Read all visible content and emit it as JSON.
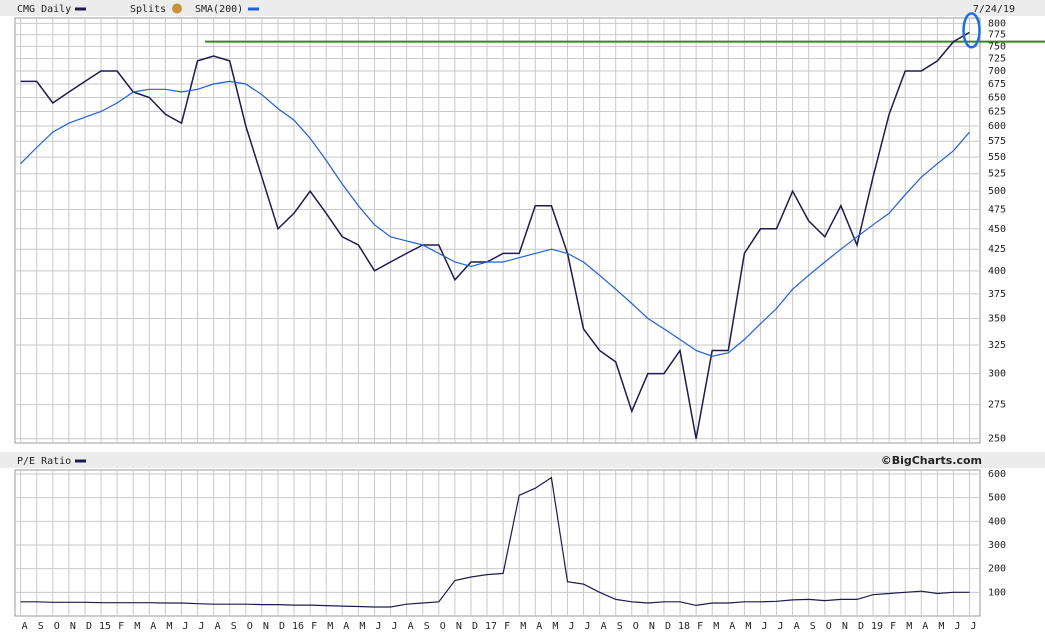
{
  "chart_data": [
    {
      "type": "line",
      "log_scale": true,
      "grid": true,
      "date_label": "7/24/19",
      "splits_label": "Splits",
      "ylim": [
        247,
        812
      ],
      "yticks": [
        250,
        275,
        300,
        325,
        350,
        375,
        400,
        425,
        450,
        475,
        500,
        525,
        550,
        575,
        600,
        625,
        650,
        675,
        700,
        725,
        750,
        775,
        800
      ],
      "reference_line": {
        "value": 760,
        "color": "#2e8b1e"
      },
      "series": [
        {
          "name": "CMG Daily",
          "color": "#1c1c4e",
          "values": [
            680,
            680,
            640,
            660,
            680,
            700,
            700,
            660,
            650,
            620,
            605,
            720,
            730,
            720,
            600,
            520,
            450,
            470,
            500,
            470,
            440,
            430,
            400,
            410,
            420,
            430,
            430,
            390,
            410,
            410,
            420,
            420,
            480,
            480,
            420,
            340,
            320,
            310,
            270,
            300,
            300,
            320,
            250,
            320,
            320,
            420,
            450,
            450,
            500,
            460,
            440,
            480,
            430,
            520,
            620,
            700,
            700,
            720,
            760,
            780
          ]
        },
        {
          "name": "SMA(200)",
          "color": "#1f5fd6",
          "values": [
            540,
            565,
            590,
            605,
            615,
            625,
            640,
            660,
            665,
            665,
            660,
            665,
            675,
            680,
            675,
            655,
            630,
            610,
            580,
            545,
            510,
            480,
            455,
            440,
            435,
            430,
            420,
            410,
            405,
            410,
            410,
            415,
            420,
            425,
            420,
            410,
            395,
            380,
            365,
            350,
            340,
            330,
            320,
            315,
            318,
            330,
            345,
            360,
            380,
            395,
            410,
            425,
            440,
            455,
            470,
            495,
            520,
            540,
            560,
            590
          ]
        }
      ]
    },
    {
      "type": "line",
      "grid": true,
      "credit": "©BigCharts.com",
      "ylim": [
        0,
        617
      ],
      "yticks": [
        100,
        200,
        300,
        400,
        500,
        600
      ],
      "categories": [
        "A",
        "S",
        "O",
        "N",
        "D",
        "15",
        "F",
        "M",
        "A",
        "M",
        "J",
        "J",
        "A",
        "S",
        "O",
        "N",
        "D",
        "16",
        "F",
        "M",
        "A",
        "M",
        "J",
        "J",
        "A",
        "S",
        "O",
        "N",
        "D",
        "17",
        "F",
        "M",
        "A",
        "M",
        "J",
        "J",
        "A",
        "S",
        "O",
        "N",
        "D",
        "18",
        "F",
        "M",
        "A",
        "M",
        "J",
        "J",
        "A",
        "S",
        "O",
        "N",
        "D",
        "19",
        "F",
        "M",
        "A",
        "M",
        "J",
        "J"
      ],
      "series": [
        {
          "name": "P/E Ratio",
          "color": "#1c1c4e",
          "values": [
            60,
            60,
            58,
            58,
            58,
            56,
            56,
            56,
            56,
            55,
            55,
            52,
            50,
            50,
            50,
            48,
            48,
            46,
            46,
            44,
            42,
            40,
            38,
            38,
            50,
            55,
            60,
            150,
            165,
            175,
            180,
            510,
            540,
            585,
            145,
            135,
            100,
            70,
            60,
            55,
            60,
            60,
            45,
            55,
            55,
            60,
            60,
            62,
            68,
            70,
            65,
            70,
            70,
            90,
            95,
            100,
            105,
            95,
            100,
            100
          ]
        }
      ]
    }
  ]
}
